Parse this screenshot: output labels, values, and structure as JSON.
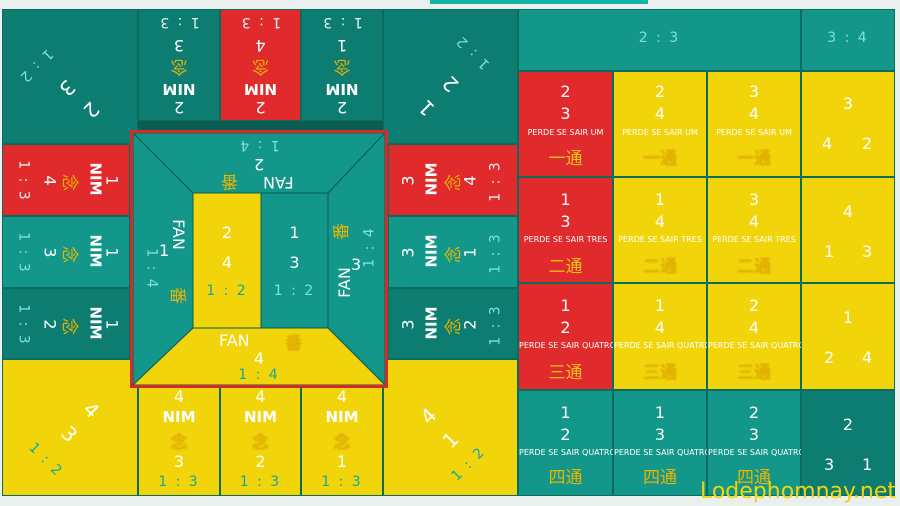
{
  "watermark": "Lodephomnay.net",
  "colors": {
    "teal": "#12978a",
    "red": "#e02a2c",
    "yellow": "#f2d40b",
    "dark": "#0a5d50"
  },
  "top": {
    "cells": [
      {
        "ratio": "1 : 3",
        "num": "3",
        "nim": "NIM",
        "han": "念",
        "bottom": "2"
      },
      {
        "ratio": "1 : 3",
        "num": "4",
        "nim": "NIM",
        "han": "念",
        "bottom": "2"
      },
      {
        "ratio": "1 : 3",
        "num": "1",
        "nim": "NIM",
        "han": "念",
        "bottom": "2"
      }
    ],
    "corner_left": {
      "ratio": "1 : 2",
      "a": "3",
      "b": "2"
    },
    "corner_right": {
      "ratio": "1 : 2",
      "a": "2",
      "b": "1"
    }
  },
  "left": {
    "cells": [
      {
        "ratio": "1 : 3",
        "num": "4",
        "nim": "NIM",
        "han": "念",
        "side": "1"
      },
      {
        "ratio": "1 : 3",
        "num": "3",
        "nim": "NIM",
        "han": "念",
        "side": "1"
      },
      {
        "ratio": "1 : 3",
        "num": "2",
        "nim": "NIM",
        "han": "念",
        "side": "1"
      }
    ]
  },
  "right": {
    "cells": [
      {
        "ratio": "1 : 3",
        "num": "4",
        "nim": "NIM",
        "han": "念",
        "side": "3"
      },
      {
        "ratio": "1 : 3",
        "num": "1",
        "nim": "NIM",
        "han": "念",
        "side": "3"
      },
      {
        "ratio": "1 : 3",
        "num": "2",
        "nim": "NIM",
        "han": "念",
        "side": "3"
      }
    ]
  },
  "bottom": {
    "cells": [
      {
        "ratio": "1 : 3",
        "num": "4",
        "nim": "NIM",
        "han": "念",
        "low": "3"
      },
      {
        "ratio": "1 : 3",
        "num": "4",
        "nim": "NIM",
        "han": "念",
        "low": "2"
      },
      {
        "ratio": "1 : 3",
        "num": "4",
        "nim": "NIM",
        "han": "念",
        "low": "1"
      }
    ],
    "corner_left": {
      "ratio": "1 : 2",
      "a": "4",
      "b": "3"
    },
    "corner_right": {
      "ratio": "1 : 2",
      "a": "4",
      "b": "1"
    }
  },
  "center": {
    "top": {
      "ratio": "1 : 4",
      "num": "2",
      "fan": "FAN",
      "han": "番"
    },
    "left": {
      "ratio": "1 : 4",
      "num": "1",
      "fan": "FAN",
      "han": "番"
    },
    "right": {
      "ratio": "1 : 4",
      "num": "3",
      "fan": "FAN",
      "han": "番"
    },
    "bottom": {
      "ratio": "1 : 4",
      "num": "4",
      "fan": "FAN",
      "han": "番"
    },
    "inner_left": {
      "a": "2",
      "b": "4",
      "ratio": "1 : 2"
    },
    "inner_right": {
      "a": "1",
      "b": "3",
      "ratio": "1 : 2"
    }
  },
  "grid": {
    "header_23": "2 : 3",
    "header_34": "3 : 4",
    "rows": [
      {
        "cells": [
          {
            "a": "2",
            "b": "3",
            "perde": "PERDE SE SAIR UM",
            "han": "一通"
          },
          {
            "a": "2",
            "b": "4",
            "perde": "PERDE SE SAIR UM",
            "han": "一通"
          },
          {
            "a": "3",
            "b": "4",
            "perde": "PERDE SE SAIR UM",
            "han": "一通"
          }
        ],
        "side": {
          "a": "3",
          "b": "4",
          "c": "2"
        }
      },
      {
        "cells": [
          {
            "a": "1",
            "b": "3",
            "perde": "PERDE SE SAIR TRES",
            "han": "二通"
          },
          {
            "a": "1",
            "b": "4",
            "perde": "PERDE SE SAIR TRES",
            "han": "二通"
          },
          {
            "a": "3",
            "b": "4",
            "perde": "PERDE SE SAIR TRES",
            "han": "二通"
          }
        ],
        "side": {
          "a": "4",
          "b": "1",
          "c": "3"
        }
      },
      {
        "cells": [
          {
            "a": "1",
            "b": "2",
            "perde": "PERDE SE SAIR QUATRO",
            "han": "三通"
          },
          {
            "a": "1",
            "b": "4",
            "perde": "PERDE SE SAIR QUATRO",
            "han": "三通"
          },
          {
            "a": "2",
            "b": "4",
            "perde": "PERDE SE SAIR QUATRO",
            "han": "三通"
          }
        ],
        "side": {
          "a": "1",
          "b": "2",
          "c": "4"
        }
      },
      {
        "cells": [
          {
            "a": "1",
            "b": "2",
            "perde": "PERDE SE SAIR QUATRO",
            "han": "四通"
          },
          {
            "a": "1",
            "b": "3",
            "perde": "PERDE SE SAIR QUATRO",
            "han": "四通"
          },
          {
            "a": "2",
            "b": "3",
            "perde": "PERDE SE SAIR QUATRO",
            "han": "四通"
          }
        ],
        "side": {
          "a": "2",
          "b": "3",
          "c": "1"
        }
      }
    ]
  }
}
